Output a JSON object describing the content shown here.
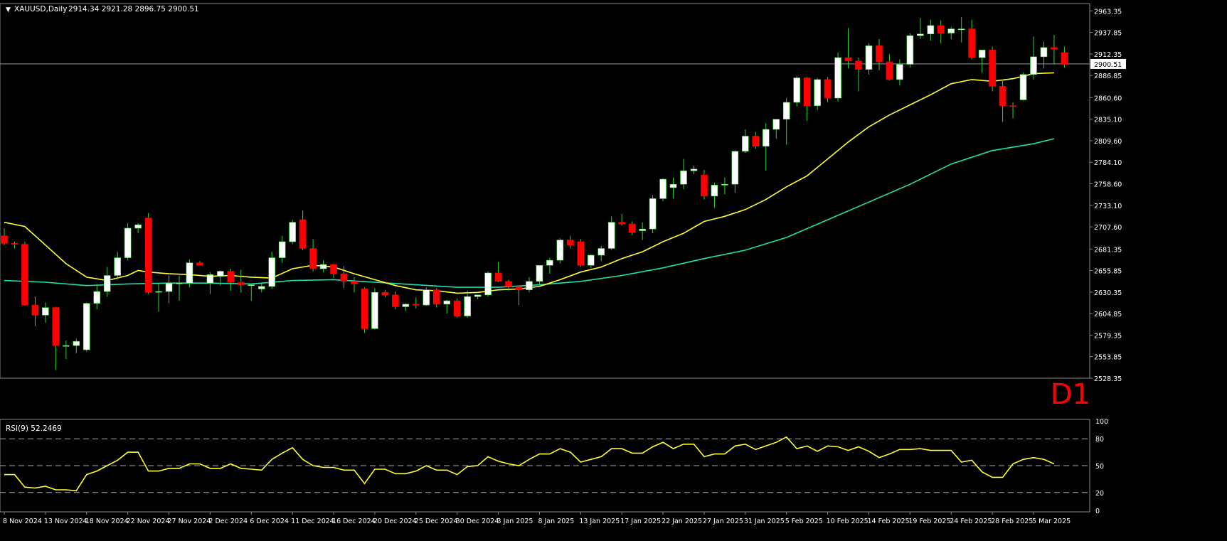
{
  "chart_data": [
    {
      "type": "candlestick",
      "header": {
        "symbol": "XAUUSD,Daily",
        "ohlc": "2914.34 2921.28 2896.75 2900.51"
      },
      "timeframe_label": "D1",
      "current_price": 2900.51,
      "current_price_label": "2900.51",
      "ylim": [
        2528.35,
        2972
      ],
      "y_ticks": [
        "2963.35",
        "2937.85",
        "2912.35",
        "2886.85",
        "2860.60",
        "2835.10",
        "2809.60",
        "2784.10",
        "2758.60",
        "2733.10",
        "2707.60",
        "2681.35",
        "2655.85",
        "2630.35",
        "2604.85",
        "2579.35",
        "2553.85",
        "2528.35"
      ],
      "x_labels": [
        {
          "i": 0,
          "text": "8 Nov 2024"
        },
        {
          "i": 4,
          "text": "13 Nov 2024"
        },
        {
          "i": 8,
          "text": "18 Nov 2024"
        },
        {
          "i": 12,
          "text": "22 Nov 2024"
        },
        {
          "i": 16,
          "text": "27 Nov 2024"
        },
        {
          "i": 20,
          "text": "2 Dec 2024"
        },
        {
          "i": 24,
          "text": "6 Dec 2024"
        },
        {
          "i": 28,
          "text": "11 Dec 2024"
        },
        {
          "i": 32,
          "text": "16 Dec 2024"
        },
        {
          "i": 36,
          "text": "20 Dec 2024"
        },
        {
          "i": 40,
          "text": "25 Dec 2024"
        },
        {
          "i": 44,
          "text": "30 Dec 2024"
        },
        {
          "i": 48,
          "text": "3 Jan 2025"
        },
        {
          "i": 52,
          "text": "8 Jan 2025"
        },
        {
          "i": 56,
          "text": "13 Jan 2025"
        },
        {
          "i": 60,
          "text": "17 Jan 2025"
        },
        {
          "i": 64,
          "text": "22 Jan 2025"
        },
        {
          "i": 68,
          "text": "27 Jan 2025"
        },
        {
          "i": 72,
          "text": "31 Jan 2025"
        },
        {
          "i": 76,
          "text": "5 Feb 2025"
        },
        {
          "i": 80,
          "text": "10 Feb 2025"
        },
        {
          "i": 84,
          "text": "14 Feb 2025"
        },
        {
          "i": 88,
          "text": "19 Feb 2025"
        },
        {
          "i": 92,
          "text": "24 Feb 2025"
        },
        {
          "i": 96,
          "text": "28 Feb 2025"
        },
        {
          "i": 100,
          "text": "5 Mar 2025"
        }
      ],
      "candles": [
        [
          2697,
          2706,
          2686,
          2688
        ],
        [
          2688,
          2690,
          2682,
          2687
        ],
        [
          2687,
          2690,
          2614,
          2615
        ],
        [
          2615,
          2625,
          2590,
          2603
        ],
        [
          2603,
          2618,
          2594,
          2612
        ],
        [
          2612,
          2613,
          2538,
          2567
        ],
        [
          2567,
          2573,
          2551,
          2567
        ],
        [
          2567,
          2575,
          2558,
          2572
        ],
        [
          2562,
          2618,
          2560,
          2617
        ],
        [
          2617,
          2640,
          2610,
          2631
        ],
        [
          2631,
          2660,
          2625,
          2650
        ],
        [
          2650,
          2678,
          2645,
          2671
        ],
        [
          2671,
          2712,
          2668,
          2706
        ],
        [
          2706,
          2712,
          2700,
          2710
        ],
        [
          2718,
          2724,
          2628,
          2630
        ],
        [
          2630,
          2640,
          2607,
          2631
        ],
        [
          2631,
          2650,
          2617,
          2641
        ],
        [
          2641,
          2650,
          2620,
          2641
        ],
        [
          2641,
          2669,
          2636,
          2665
        ],
        [
          2665,
          2667,
          2662,
          2662
        ],
        [
          2641,
          2654,
          2628,
          2651
        ],
        [
          2649,
          2656,
          2638,
          2655
        ],
        [
          2655,
          2658,
          2632,
          2642
        ],
        [
          2642,
          2657,
          2630,
          2639
        ],
        [
          2639,
          2640,
          2620,
          2639
        ],
        [
          2634,
          2641,
          2630,
          2637
        ],
        [
          2637,
          2678,
          2634,
          2671
        ],
        [
          2671,
          2697,
          2665,
          2690
        ],
        [
          2690,
          2716,
          2687,
          2713
        ],
        [
          2716,
          2727,
          2680,
          2682
        ],
        [
          2682,
          2693,
          2655,
          2658
        ],
        [
          2658,
          2668,
          2654,
          2663
        ],
        [
          2663,
          2664,
          2647,
          2652
        ],
        [
          2652,
          2661,
          2635,
          2643
        ],
        [
          2643,
          2648,
          2630,
          2640
        ],
        [
          2634,
          2636,
          2582,
          2587
        ],
        [
          2587,
          2635,
          2586,
          2630
        ],
        [
          2630,
          2633,
          2624,
          2627
        ],
        [
          2627,
          2631,
          2610,
          2613
        ],
        [
          2613,
          2617,
          2608,
          2616
        ],
        [
          2616,
          2624,
          2611,
          2615
        ],
        [
          2615,
          2636,
          2614,
          2633
        ],
        [
          2633,
          2635,
          2612,
          2616
        ],
        [
          2616,
          2621,
          2605,
          2620
        ],
        [
          2620,
          2623,
          2600,
          2602
        ],
        [
          2602,
          2632,
          2600,
          2625
        ],
        [
          2625,
          2627,
          2622,
          2627
        ],
        [
          2627,
          2655,
          2625,
          2653
        ],
        [
          2653,
          2666,
          2642,
          2643
        ],
        [
          2643,
          2645,
          2632,
          2637
        ],
        [
          2637,
          2638,
          2615,
          2633
        ],
        [
          2633,
          2648,
          2630,
          2643
        ],
        [
          2643,
          2662,
          2640,
          2662
        ],
        [
          2662,
          2671,
          2652,
          2668
        ],
        [
          2668,
          2694,
          2664,
          2692
        ],
        [
          2692,
          2697,
          2682,
          2686
        ],
        [
          2690,
          2693,
          2660,
          2662
        ],
        [
          2662,
          2675,
          2659,
          2674
        ],
        [
          2674,
          2685,
          2667,
          2682
        ],
        [
          2682,
          2720,
          2680,
          2713
        ],
        [
          2713,
          2723,
          2709,
          2711
        ],
        [
          2711,
          2714,
          2698,
          2701
        ],
        [
          2703,
          2713,
          2692,
          2705
        ],
        [
          2705,
          2745,
          2700,
          2741
        ],
        [
          2741,
          2765,
          2738,
          2764
        ],
        [
          2754,
          2766,
          2741,
          2758
        ],
        [
          2758,
          2788,
          2752,
          2774
        ],
        [
          2774,
          2780,
          2770,
          2776
        ],
        [
          2769,
          2775,
          2740,
          2744
        ],
        [
          2744,
          2760,
          2730,
          2757
        ],
        [
          2757,
          2766,
          2746,
          2758
        ],
        [
          2758,
          2798,
          2748,
          2797
        ],
        [
          2797,
          2823,
          2795,
          2815
        ],
        [
          2815,
          2820,
          2800,
          2803
        ],
        [
          2803,
          2830,
          2774,
          2823
        ],
        [
          2823,
          2834,
          2812,
          2835
        ],
        [
          2835,
          2860,
          2805,
          2855
        ],
        [
          2855,
          2886,
          2850,
          2884
        ],
        [
          2884,
          2885,
          2833,
          2851
        ],
        [
          2851,
          2884,
          2846,
          2882
        ],
        [
          2882,
          2885,
          2855,
          2860
        ],
        [
          2860,
          2914,
          2856,
          2908
        ],
        [
          2908,
          2943,
          2895,
          2904
        ],
        [
          2904,
          2908,
          2868,
          2894
        ],
        [
          2894,
          2925,
          2888,
          2922
        ],
        [
          2922,
          2930,
          2893,
          2903
        ],
        [
          2903,
          2912,
          2881,
          2882
        ],
        [
          2882,
          2906,
          2875,
          2900
        ],
        [
          2900,
          2937,
          2896,
          2934
        ],
        [
          2934,
          2955,
          2930,
          2936
        ],
        [
          2936,
          2953,
          2928,
          2946
        ],
        [
          2946,
          2952,
          2925,
          2937
        ],
        [
          2937,
          2944,
          2930,
          2942
        ],
        [
          2942,
          2956,
          2926,
          2942
        ],
        [
          2942,
          2953,
          2906,
          2908
        ],
        [
          2908,
          2917,
          2890,
          2917
        ],
        [
          2917,
          2921,
          2868,
          2874
        ],
        [
          2874,
          2882,
          2832,
          2851
        ],
        [
          2851,
          2855,
          2836,
          2850
        ],
        [
          2858,
          2890,
          2857,
          2888
        ],
        [
          2888,
          2933,
          2882,
          2909
        ],
        [
          2909,
          2927,
          2895,
          2920
        ],
        [
          2920,
          2935,
          2900,
          2918
        ],
        [
          2914,
          2921,
          2896,
          2900
        ]
      ],
      "ma_yellow": [
        [
          0,
          2713
        ],
        [
          2,
          2708
        ],
        [
          4,
          2686
        ],
        [
          6,
          2664
        ],
        [
          8,
          2648
        ],
        [
          10,
          2644
        ],
        [
          12,
          2650
        ],
        [
          13,
          2656
        ],
        [
          14,
          2654
        ],
        [
          16,
          2652
        ],
        [
          18,
          2651
        ],
        [
          20,
          2649
        ],
        [
          22,
          2650
        ],
        [
          24,
          2648
        ],
        [
          26,
          2647
        ],
        [
          28,
          2658
        ],
        [
          30,
          2662
        ],
        [
          32,
          2660
        ],
        [
          34,
          2652
        ],
        [
          36,
          2645
        ],
        [
          38,
          2638
        ],
        [
          40,
          2633
        ],
        [
          42,
          2632
        ],
        [
          44,
          2629
        ],
        [
          46,
          2630
        ],
        [
          48,
          2633
        ],
        [
          50,
          2634
        ],
        [
          52,
          2637
        ],
        [
          54,
          2645
        ],
        [
          56,
          2654
        ],
        [
          58,
          2660
        ],
        [
          60,
          2670
        ],
        [
          62,
          2678
        ],
        [
          64,
          2690
        ],
        [
          66,
          2700
        ],
        [
          68,
          2714
        ],
        [
          70,
          2720
        ],
        [
          72,
          2728
        ],
        [
          74,
          2740
        ],
        [
          76,
          2755
        ],
        [
          78,
          2768
        ],
        [
          80,
          2788
        ],
        [
          82,
          2808
        ],
        [
          84,
          2826
        ],
        [
          86,
          2840
        ],
        [
          88,
          2852
        ],
        [
          90,
          2864
        ],
        [
          92,
          2877
        ],
        [
          94,
          2882
        ],
        [
          96,
          2880
        ],
        [
          98,
          2883
        ],
        [
          100,
          2889
        ],
        [
          102,
          2890
        ]
      ],
      "ma_teal": [
        [
          0,
          2644
        ],
        [
          4,
          2642
        ],
        [
          8,
          2638
        ],
        [
          12,
          2640
        ],
        [
          16,
          2641
        ],
        [
          20,
          2641
        ],
        [
          24,
          2640
        ],
        [
          28,
          2644
        ],
        [
          32,
          2645
        ],
        [
          36,
          2642
        ],
        [
          40,
          2639
        ],
        [
          44,
          2636
        ],
        [
          48,
          2636
        ],
        [
          52,
          2639
        ],
        [
          56,
          2643
        ],
        [
          60,
          2650
        ],
        [
          64,
          2659
        ],
        [
          68,
          2670
        ],
        [
          72,
          2680
        ],
        [
          76,
          2695
        ],
        [
          80,
          2716
        ],
        [
          84,
          2737
        ],
        [
          88,
          2758
        ],
        [
          92,
          2782
        ],
        [
          96,
          2798
        ],
        [
          100,
          2806
        ],
        [
          102,
          2812
        ]
      ],
      "rsi": {
        "label": "RSI(9) 52.2469",
        "scale_labels": [
          "100",
          "80",
          "50",
          "20",
          "0"
        ],
        "values": [
          40,
          40,
          26,
          25,
          27,
          23,
          23,
          22,
          40,
          44,
          50,
          56,
          65,
          65,
          44,
          44,
          47,
          47,
          52,
          52,
          47,
          47,
          52,
          47,
          46,
          45,
          57,
          64,
          70,
          57,
          50,
          48,
          48,
          45,
          45,
          30,
          46,
          46,
          41,
          41,
          44,
          50,
          45,
          45,
          40,
          49,
          50,
          60,
          55,
          52,
          50,
          57,
          63,
          63,
          69,
          65,
          54,
          57,
          60,
          69,
          69,
          64,
          64,
          71,
          76,
          69,
          74,
          74,
          60,
          63,
          63,
          72,
          74,
          68,
          72,
          76,
          82,
          69,
          72,
          66,
          72,
          71,
          67,
          71,
          66,
          59,
          63,
          68,
          68,
          69,
          67,
          67,
          67,
          54,
          56,
          43,
          37,
          37,
          52,
          57,
          59,
          57,
          52
        ]
      }
    }
  ]
}
